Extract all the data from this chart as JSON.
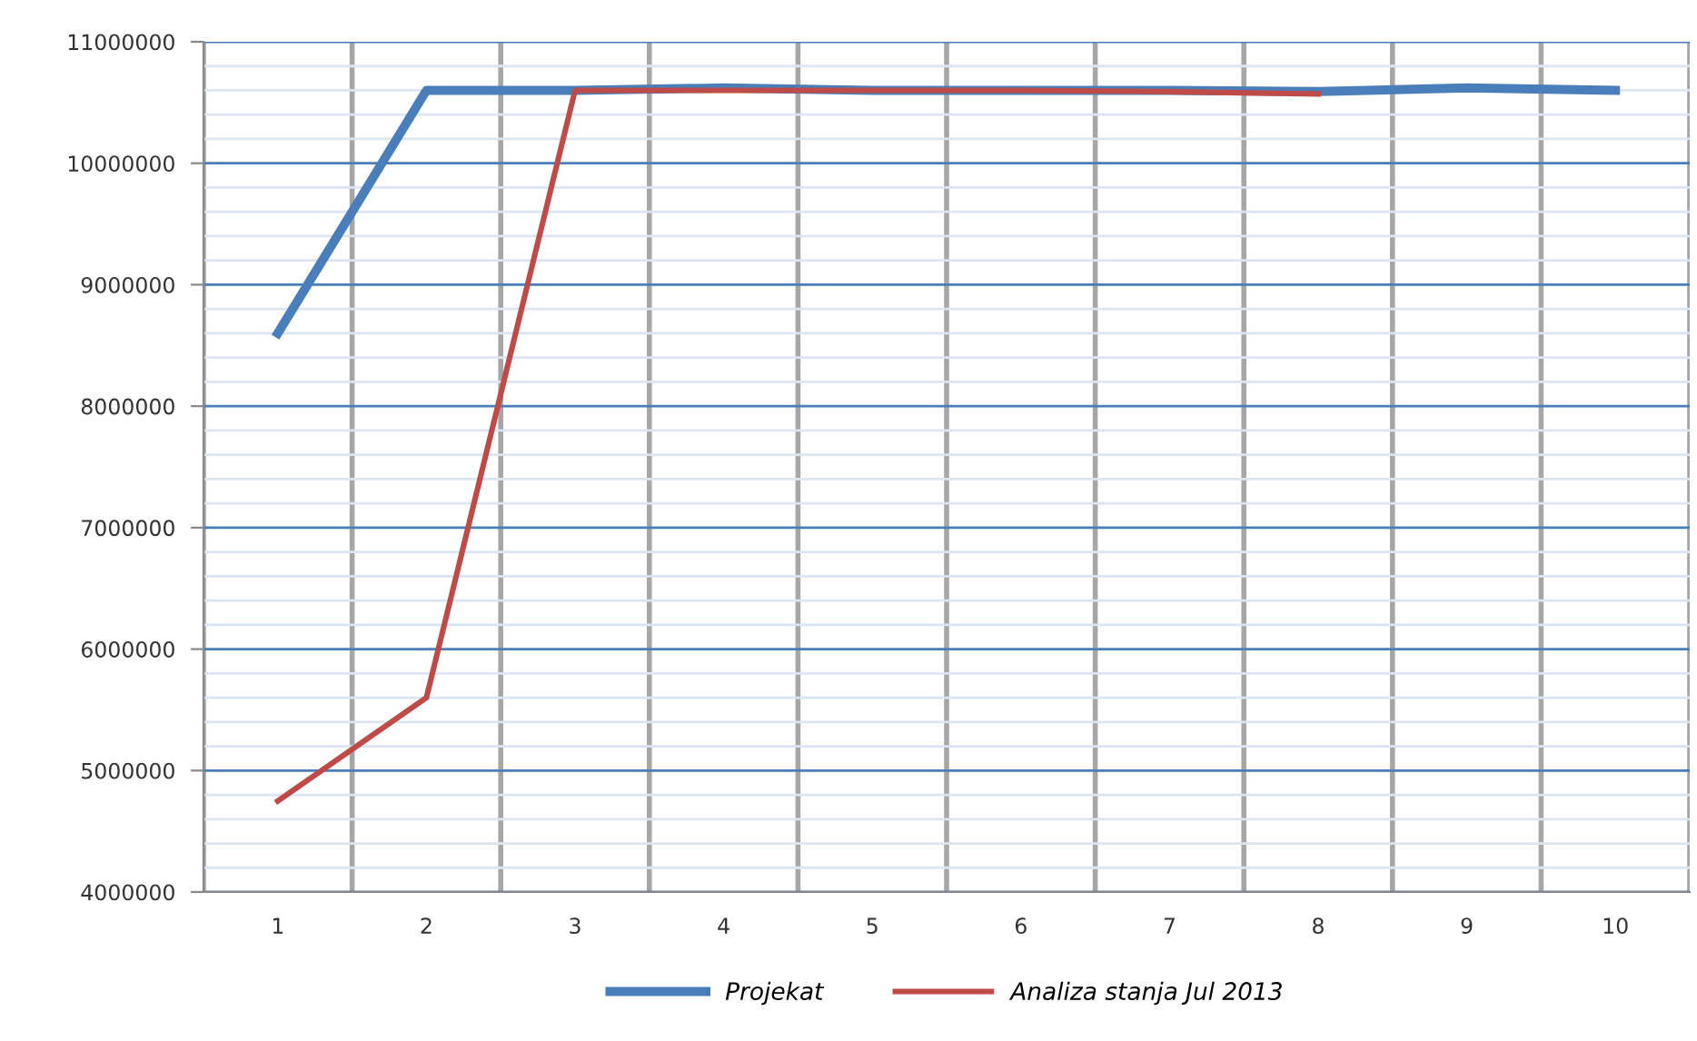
{
  "chart_data": {
    "type": "line",
    "categories": [
      "1",
      "2",
      "3",
      "4",
      "5",
      "6",
      "7",
      "8",
      "9",
      "10"
    ],
    "series": [
      {
        "name": "Projekat",
        "color": "#4a7ebb",
        "values": [
          8600000,
          10600000,
          10600000,
          10620000,
          10600000,
          10600000,
          10600000,
          10590000,
          10620000,
          10600000
        ]
      },
      {
        "name": "Analiza stanja Jul 2013",
        "color": "#be4b48",
        "values": [
          4750000,
          5600000,
          10600000,
          10600000,
          10600000,
          10600000,
          10590000,
          10570000,
          null,
          null
        ]
      }
    ],
    "ylim": [
      4000000,
      11000000
    ],
    "yticks": [
      4000000,
      5000000,
      6000000,
      7000000,
      8000000,
      9000000,
      10000000,
      11000000
    ],
    "grid": true,
    "legend": "bottom",
    "marker": "none",
    "line_style": "solid"
  }
}
